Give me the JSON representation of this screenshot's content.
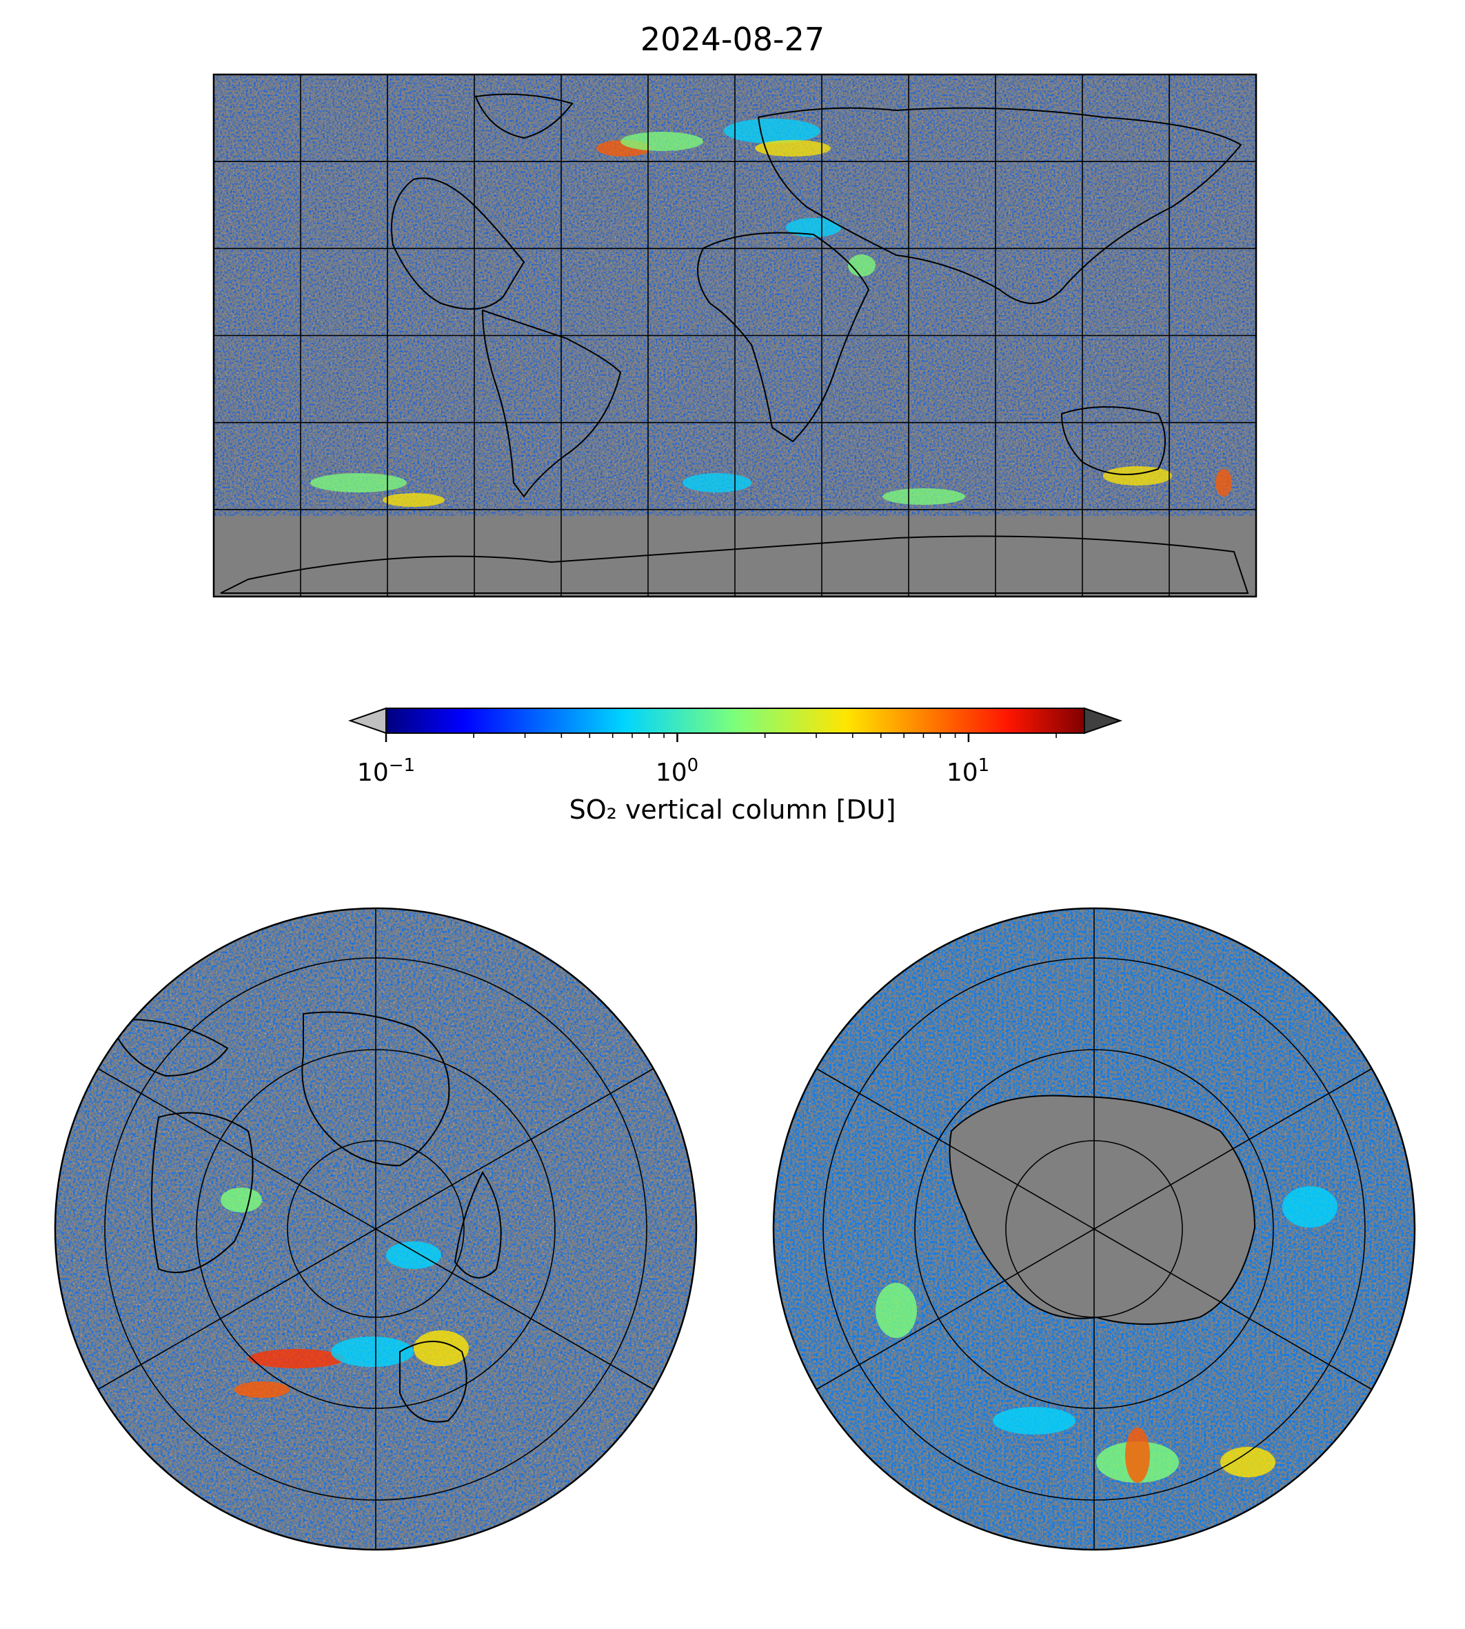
{
  "figure": {
    "title": "2024-08-27",
    "panels": [
      {
        "name": "global-map",
        "projection": "equirectangular",
        "gridlines": "30° lon / 30° lat",
        "background": "#808080"
      },
      {
        "name": "north-polar-map",
        "projection": "north polar stereographic",
        "background": "#808080"
      },
      {
        "name": "south-polar-map",
        "projection": "south polar stereographic",
        "background": "#808080"
      }
    ]
  },
  "colorbar": {
    "label": "SO₂ vertical column [DU]",
    "scale": "log",
    "range": [
      0.1,
      25
    ],
    "extend": "both",
    "under_color": "#c0c0c0",
    "over_color": "#404040",
    "colormap": "jet",
    "ticks": [
      {
        "value": 0.1,
        "base": "10",
        "exp": "−1"
      },
      {
        "value": 1,
        "base": "10",
        "exp": "0"
      },
      {
        "value": 10,
        "base": "10",
        "exp": "1"
      }
    ]
  },
  "colors": {
    "no_data": "#808080",
    "below_range": "#c0c0c0",
    "coastline": "#000000",
    "hotspot": "#ff3300"
  }
}
